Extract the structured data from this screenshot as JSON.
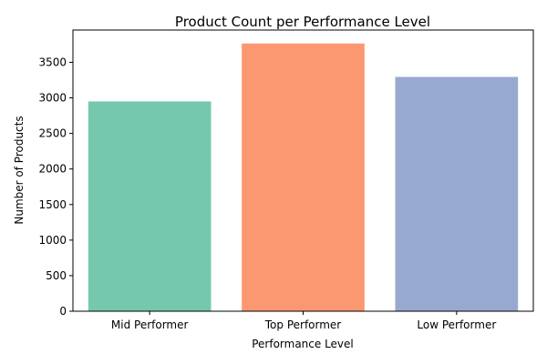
{
  "chart_data": {
    "type": "bar",
    "title": "Product Count per Performance Level",
    "xlabel": "Performance Level",
    "ylabel": "Number of Products",
    "categories": [
      "Mid Performer",
      "Top Performer",
      "Low Performer"
    ],
    "values": [
      2950,
      3765,
      3295
    ],
    "colors": [
      "#66c2a5",
      "#fc8d62",
      "#8da0cb"
    ],
    "bar_opacity": 0.9,
    "ylim": [
      0,
      3954
    ],
    "yticks": [
      0,
      500,
      1000,
      1500,
      2000,
      2500,
      3000,
      3500
    ],
    "grid": false,
    "legend": "none"
  }
}
